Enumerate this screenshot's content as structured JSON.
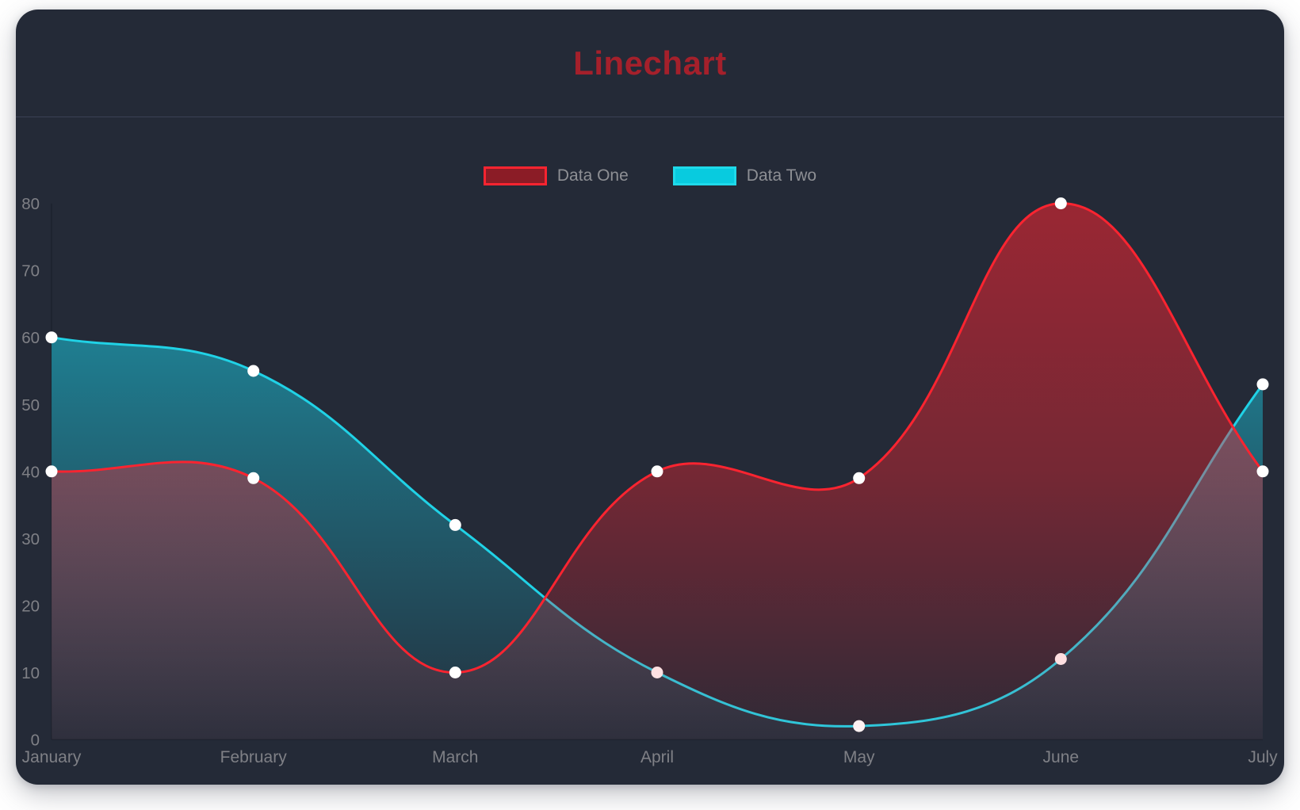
{
  "colors": {
    "page-bg": "#ffffff",
    "card-bg": "#242a37",
    "title-color": "#a5202b",
    "axis-label": "#7f8086",
    "legend-label": "#8d8f94",
    "divider": "#3b4155"
  },
  "chart_data": {
    "type": "line",
    "title": "Linechart",
    "categories": [
      "January",
      "February",
      "March",
      "April",
      "May",
      "June",
      "July"
    ],
    "series": [
      {
        "name": "Data One",
        "values": [
          40,
          39,
          10,
          40,
          39,
          80,
          40
        ],
        "line_color": "#fa2430",
        "point_color": "#ffffff",
        "fill_stops": [
          {
            "offset": "0%",
            "color": "rgba(250,36,48,0.55)"
          },
          {
            "offset": "50%",
            "color": "rgba(250,36,48,0.38)"
          },
          {
            "offset": "100%",
            "color": "rgba(250,36,48,0.05)"
          }
        ],
        "legend_swatch": {
          "fill": "#8b1c26",
          "border": "#fa2430"
        }
      },
      {
        "name": "Data Two",
        "values": [
          60,
          55,
          32,
          10,
          2,
          12,
          53
        ],
        "line_color": "#20d2e6",
        "point_color": "#ffffff",
        "fill_stops": [
          {
            "offset": "0%",
            "color": "rgba(26,199,223,0.70)"
          },
          {
            "offset": "100%",
            "color": "rgba(26,199,223,0.04)"
          }
        ],
        "legend_swatch": {
          "fill": "#08cbdf",
          "border": "#1fd9e9"
        }
      }
    ],
    "ylim": [
      0,
      80
    ],
    "yticks": [
      0,
      10,
      20,
      30,
      40,
      50,
      60,
      70,
      80
    ],
    "grid": false,
    "legend_position": "top",
    "tension": 0.4,
    "point_radius": 7.5,
    "line_width": 3
  }
}
